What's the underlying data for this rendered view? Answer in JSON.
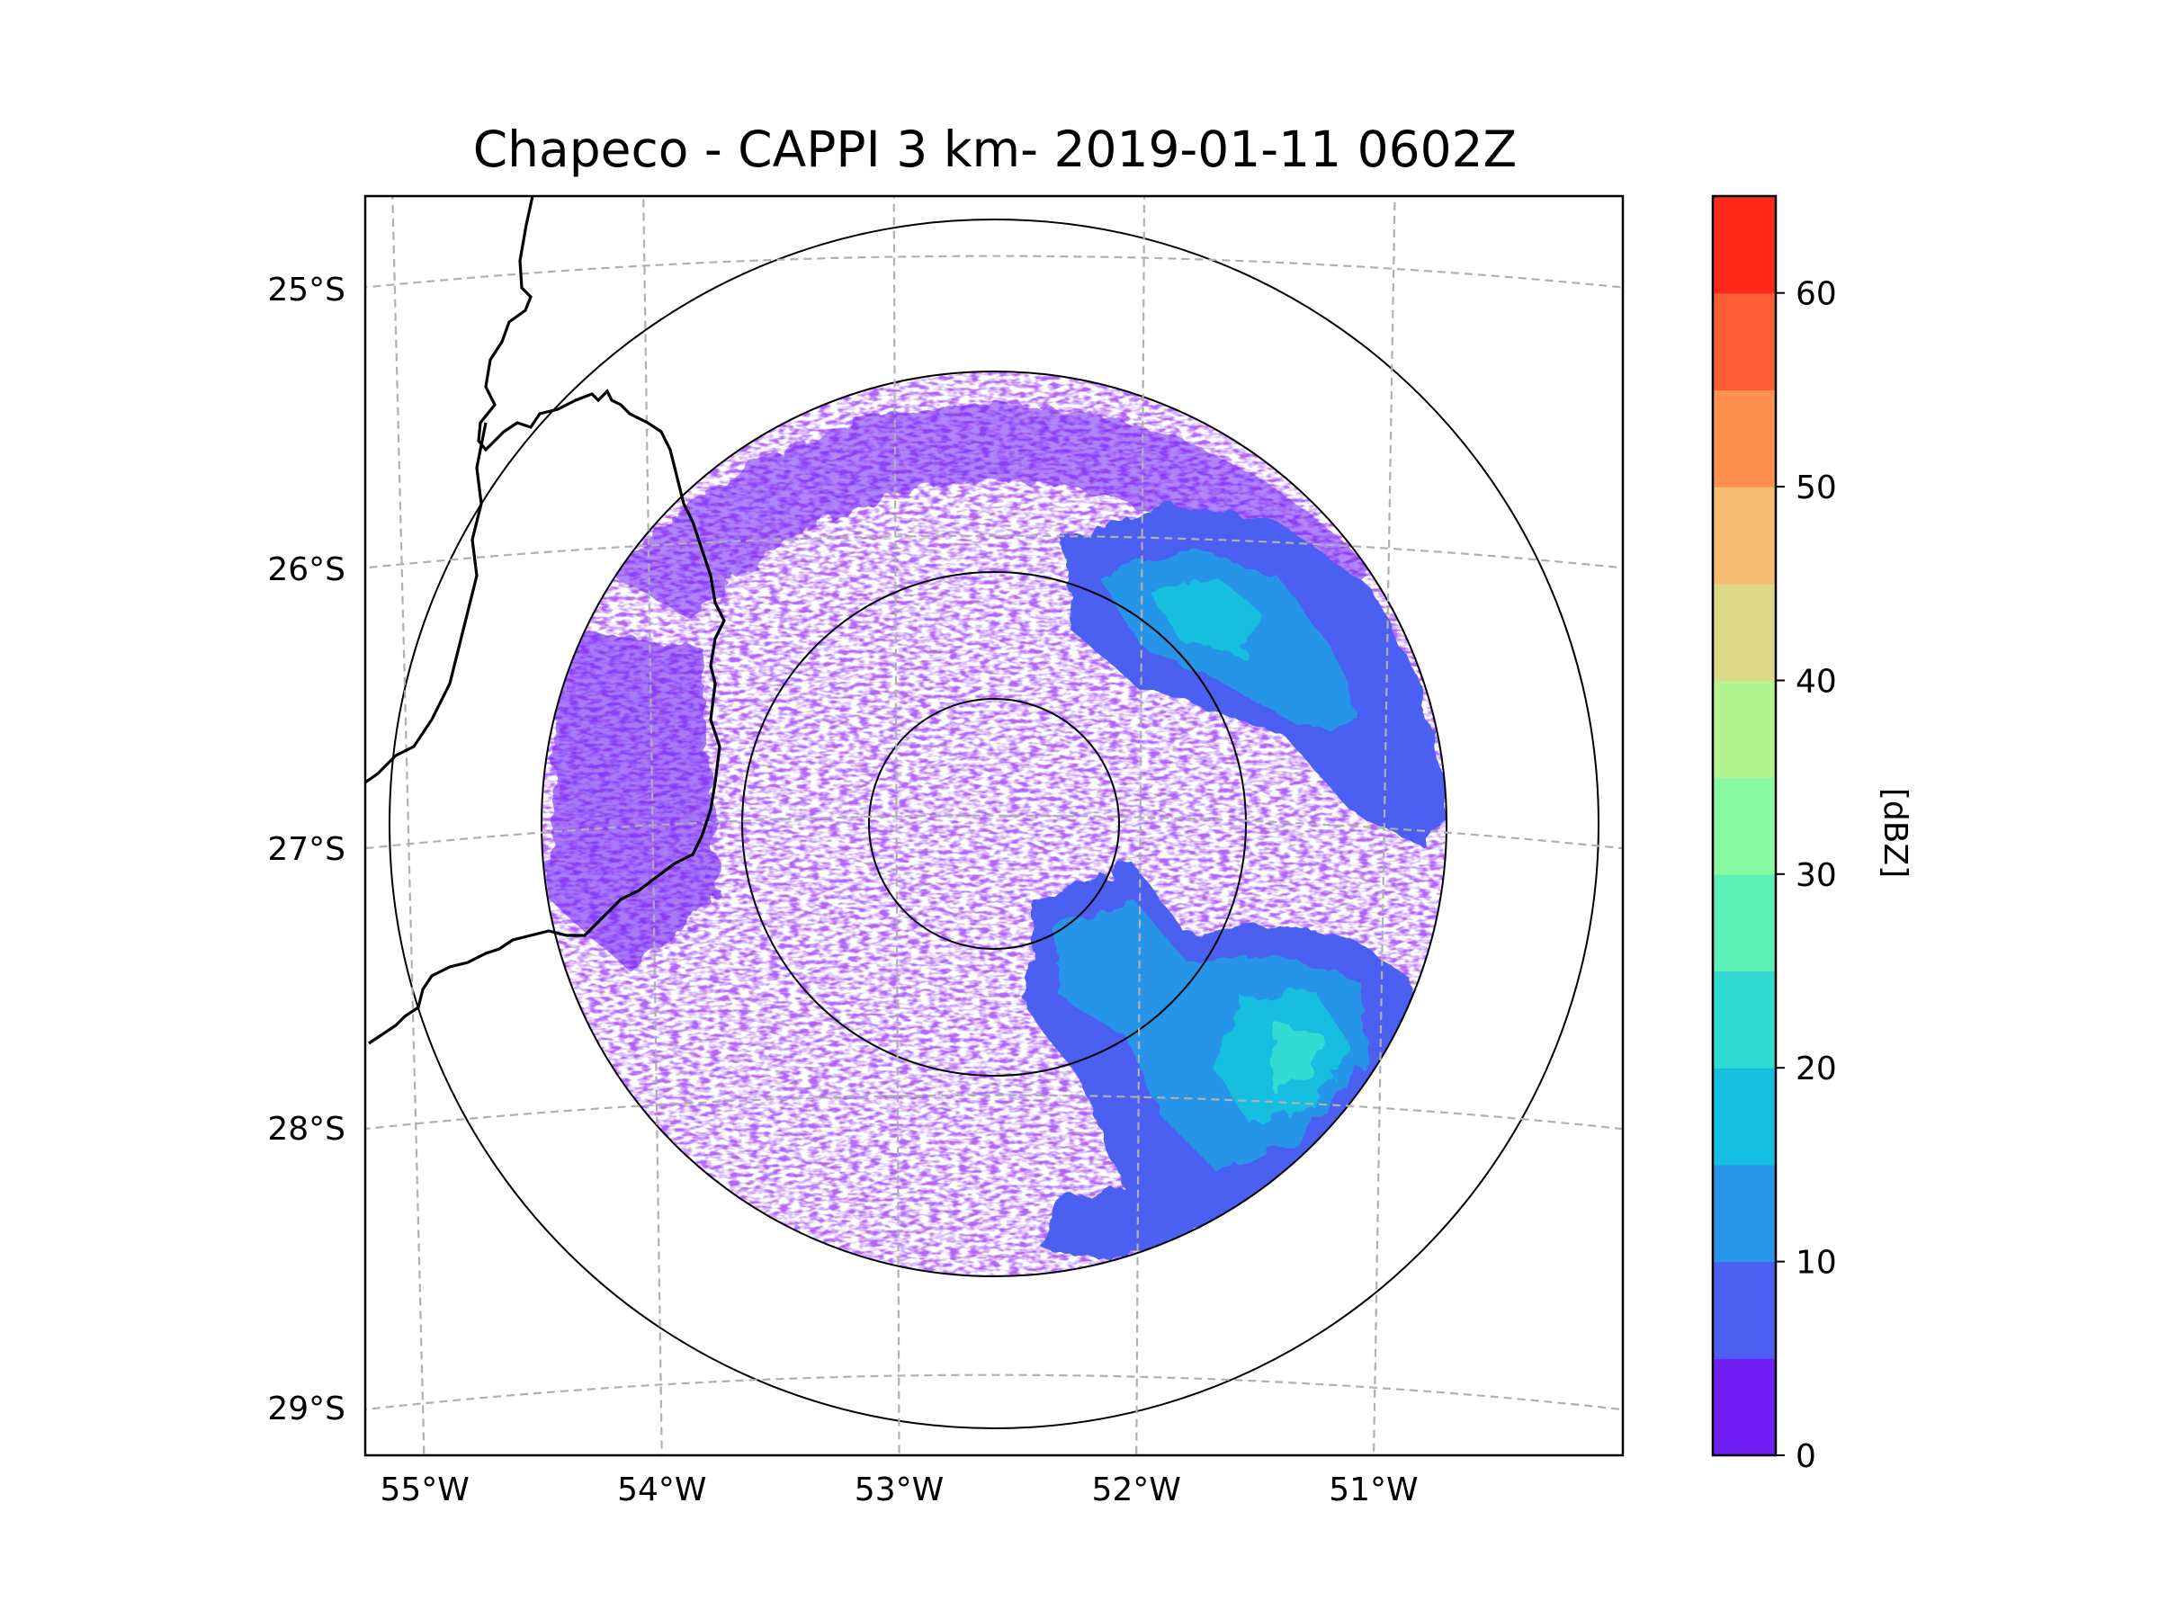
{
  "chart_data": {
    "type": "radar_map",
    "title": "Chapeco - CAPPI 3 km- 2019-01-11 0602Z",
    "product": "CAPPI 3 km",
    "station": "Chapeco",
    "datetime": "2019-01-11 0602Z",
    "longitude_ticks": [
      "55°W",
      "54°W",
      "53°W",
      "52°W",
      "51°W"
    ],
    "latitude_ticks": [
      "25°S",
      "26°S",
      "27°S",
      "28°S",
      "29°S"
    ],
    "lon_range": [
      -55.17,
      -50.05
    ],
    "lat_range": [
      -29.28,
      -24.78
    ],
    "radar_center": {
      "lon": -52.6,
      "lat": -27.03
    },
    "grid": true,
    "colorbar": {
      "label": "[dBZ]",
      "range": [
        0,
        65
      ],
      "tick_labels": [
        "0",
        "10",
        "20",
        "30",
        "40",
        "50",
        "60"
      ],
      "tick_values": [
        0,
        10,
        20,
        30,
        40,
        50,
        60
      ],
      "levels": [
        0,
        5,
        10,
        15,
        20,
        25,
        30,
        35,
        40,
        45,
        50,
        55,
        60,
        65
      ],
      "colors": [
        "#7020f5",
        "#4b5ff0",
        "#2895e8",
        "#14bfe0",
        "#30dcd0",
        "#5cf0b8",
        "#88faa0",
        "#b4f490",
        "#dcd885",
        "#f4bc6e",
        "#ff9050",
        "#ff5e35",
        "#ff2818"
      ]
    }
  }
}
